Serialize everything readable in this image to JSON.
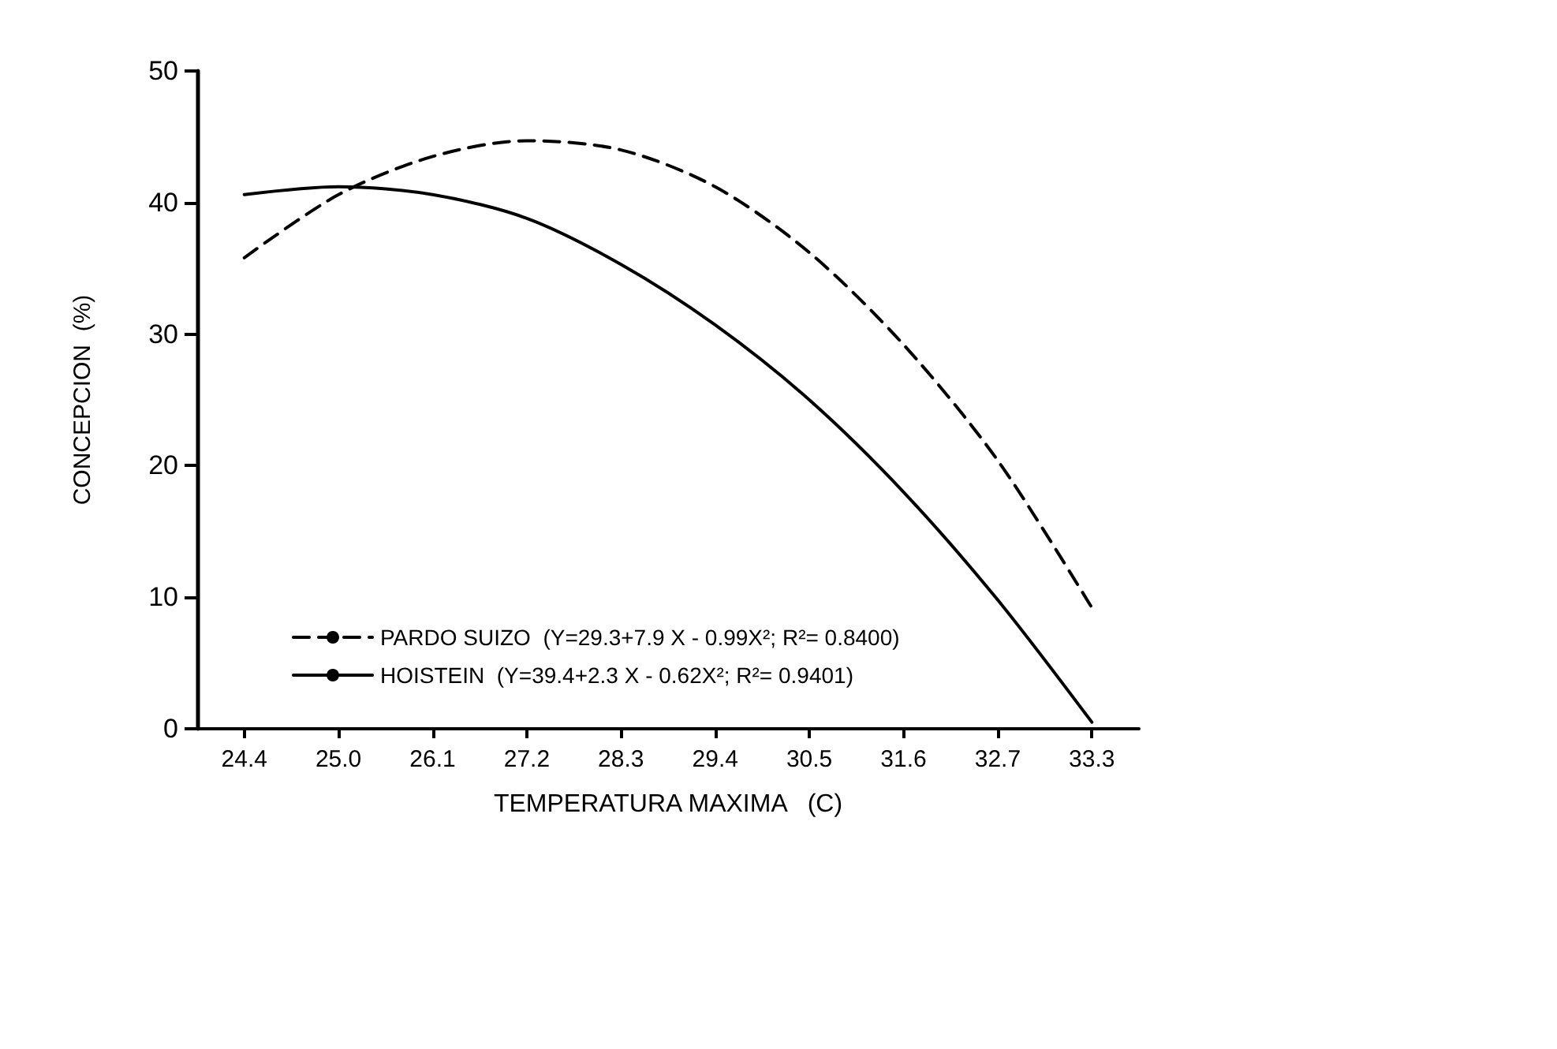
{
  "chart_data": {
    "type": "line",
    "xlabel": "TEMPERATURA MAXIMA   (C)",
    "ylabel": "CONCEPCION  (%)",
    "categories": [
      "24.4",
      "25.0",
      "26.1",
      "27.2",
      "28.3",
      "29.4",
      "30.5",
      "31.6",
      "32.7",
      "33.3"
    ],
    "series": [
      {
        "name": "PARDO SUIZO  (Y=29.3+7.9 X - 0.99X²; R²= 0.8400)",
        "color": "#000000",
        "line_style": "dashed",
        "values": [
          35.8,
          40.6,
          43.5,
          44.7,
          44.0,
          41.2,
          36.2,
          29.2,
          20.4,
          9.2
        ]
      },
      {
        "name": "HOISTEIN  (Y=39.4+2.3 X - 0.62X²; R²= 0.9401)",
        "color": "#000000",
        "line_style": "solid",
        "values": [
          40.6,
          41.2,
          40.6,
          38.8,
          35.3,
          30.7,
          25.0,
          18.0,
          9.8,
          0.5
        ]
      }
    ],
    "ylim": [
      0,
      50
    ],
    "yticks": [
      0,
      10,
      20,
      30,
      40,
      50
    ],
    "grid": false,
    "legend": "bottom left",
    "marker": "none"
  }
}
